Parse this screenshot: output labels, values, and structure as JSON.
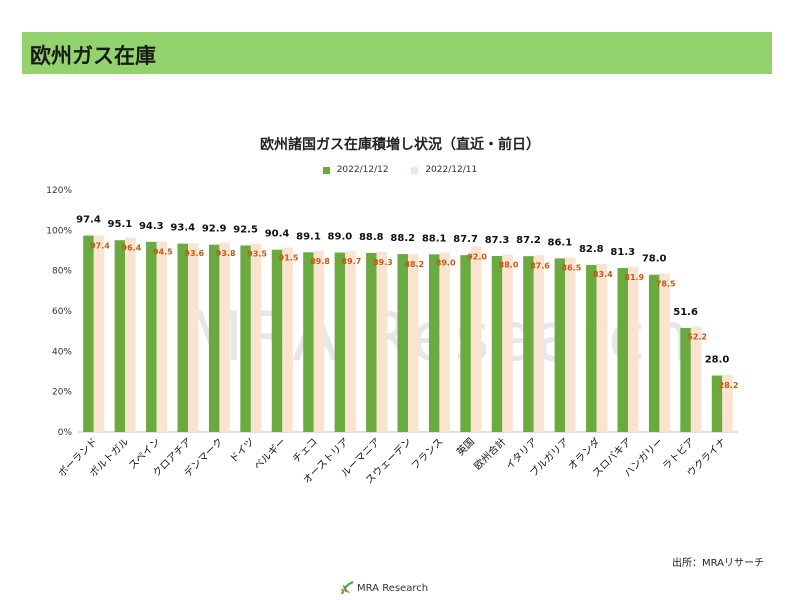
{
  "header": {
    "title": "欧州ガス在庫"
  },
  "source": "出所：MRAリサーチ",
  "watermark": "MRA Research",
  "footer": {
    "logo_text": "MRA Research"
  },
  "colors": {
    "header_bg": "#92d36e",
    "series1": "#6aaa3e",
    "series2": "#fbe3d2",
    "label2": "#c55a11"
  },
  "chart_data": {
    "type": "bar",
    "title": "欧州諸国ガス在庫積増し状況（直近・前日）",
    "categories": [
      "ポーランド",
      "ポルトガル",
      "スペイン",
      "クロアチア",
      "デンマーク",
      "ドイツ",
      "ベルギー",
      "チェコ",
      "オーストリア",
      "ルーマニア",
      "スウェーデン",
      "フランス",
      "英国",
      "欧州合計",
      "イタリア",
      "ブルガリア",
      "オランダ",
      "スロバキア",
      "ハンガリー",
      "ラトビア",
      "ウクライナ"
    ],
    "series": [
      {
        "name": "2022/12/12",
        "color": "#6aaa3e",
        "values": [
          97.4,
          95.1,
          94.3,
          93.4,
          92.9,
          92.5,
          90.4,
          89.1,
          89.0,
          88.8,
          88.2,
          88.1,
          87.7,
          87.3,
          87.2,
          86.1,
          82.8,
          81.3,
          78.0,
          51.6,
          28.0
        ],
        "labels": [
          "97.4",
          "95.1",
          "94.3",
          "93.4",
          "92.9",
          "92.5",
          "90.4",
          "89.1",
          "89.0",
          "88.8",
          "88.2",
          "88.1",
          "87.7",
          "87.3",
          "87.2",
          "86.1",
          "82.8",
          "81.3",
          "78.0",
          "51.6",
          "28.0"
        ]
      },
      {
        "name": "2022/12/11",
        "color": "#fbe3d2",
        "values": [
          97.4,
          96.4,
          94.5,
          93.6,
          93.8,
          93.5,
          91.5,
          89.8,
          89.7,
          89.3,
          88.2,
          89.0,
          92.0,
          88.0,
          87.6,
          86.5,
          83.4,
          81.9,
          78.5,
          52.2,
          28.2
        ],
        "labels": [
          "97.4",
          "96.4",
          "94.5",
          "93.6",
          "93.8",
          "93.5",
          "91.5",
          "89.8",
          "89.7",
          "89.3",
          "88.2",
          "89.0",
          "92.0",
          "88.0",
          "87.6",
          "86.5",
          "83.4",
          "81.9",
          "78.5",
          "52.2",
          "28.2"
        ]
      }
    ],
    "y_ticks": [
      "0%",
      "20%",
      "40%",
      "60%",
      "80%",
      "100%",
      "120%"
    ],
    "ylim": [
      0,
      120
    ],
    "legend_position": "top-center",
    "grid": false
  }
}
